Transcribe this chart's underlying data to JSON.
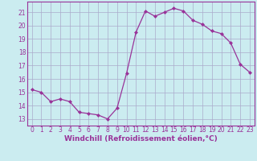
{
  "x": [
    0,
    1,
    2,
    3,
    4,
    5,
    6,
    7,
    8,
    9,
    10,
    11,
    12,
    13,
    14,
    15,
    16,
    17,
    18,
    19,
    20,
    21,
    22,
    23
  ],
  "y": [
    15.2,
    15.0,
    14.3,
    14.5,
    14.3,
    13.5,
    13.4,
    13.3,
    13.0,
    13.8,
    16.4,
    19.5,
    21.1,
    20.7,
    21.0,
    21.3,
    21.1,
    20.4,
    20.1,
    19.6,
    19.4,
    18.7,
    17.1,
    16.5
  ],
  "line_color": "#993399",
  "marker": "D",
  "marker_size": 2.0,
  "bg_color": "#cbecf0",
  "grid_color": "#aaaacc",
  "xlabel": "Windchill (Refroidissement éolien,°C)",
  "ylabel_ticks": [
    13,
    14,
    15,
    16,
    17,
    18,
    19,
    20,
    21
  ],
  "ylim": [
    12.5,
    21.8
  ],
  "xlim": [
    -0.5,
    23.5
  ],
  "tick_fontsize": 5.5,
  "label_fontsize": 6.5
}
